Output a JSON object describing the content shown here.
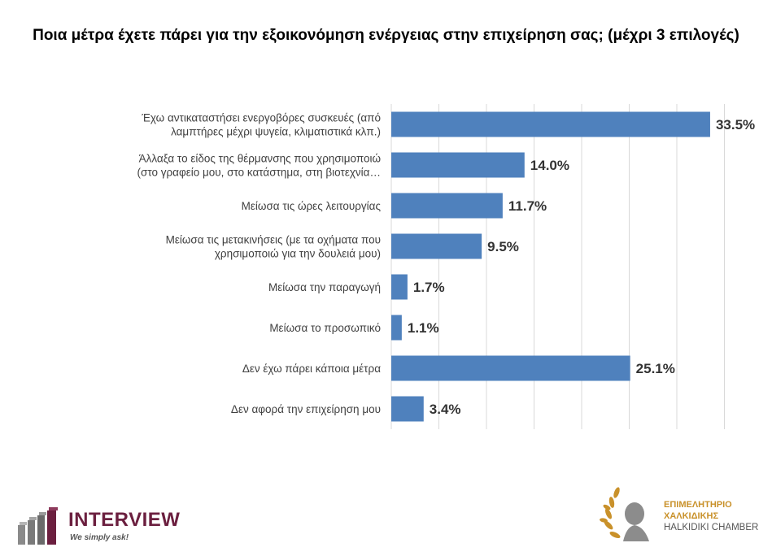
{
  "chart_data": {
    "type": "bar",
    "orientation": "horizontal",
    "title": "Ποια μέτρα έχετε πάρει για την εξοικονόμηση ενέργειας στην επιχείρηση σας; (μέχρι 3 επιλογές)",
    "categories": [
      [
        "Έχω αντικαταστήσει ενεργοβόρες συσκευές (από",
        "λαμπτήρες μέχρι ψυγεία, κλιματιστικά κλπ.)"
      ],
      [
        "Άλλαξα το είδος της θέρμανσης που χρησιμοποιώ",
        "(στο γραφείο μου, στο κατάστημα, στη βιοτεχνία…"
      ],
      [
        "Μείωσα τις ώρες λειτουργίας"
      ],
      [
        "Μείωσα τις μετακινήσεις (με τα οχήματα που",
        "χρησιμοποιώ για την δουλειά μου)"
      ],
      [
        "Μείωσα την παραγωγή"
      ],
      [
        "Μείωσα το προσωπικό"
      ],
      [
        "Δεν έχω πάρει κάποια μέτρα"
      ],
      [
        "Δεν αφορά την επιχείρηση μου"
      ]
    ],
    "values": [
      33.5,
      14.0,
      11.7,
      9.5,
      1.7,
      1.1,
      25.1,
      3.4
    ],
    "value_labels": [
      "33.5%",
      "14.0%",
      "11.7%",
      "9.5%",
      "1.7%",
      "1.1%",
      "25.1%",
      "3.4%"
    ],
    "xlim": [
      0,
      40
    ],
    "grid": true,
    "bar_color": "#4f81bd",
    "grid_color": "#d9d9d9"
  },
  "logos": {
    "interview": {
      "name": "INTERVIEW",
      "tagline": "We simply ask!",
      "color": "#6b1f3f"
    },
    "chamber": {
      "line1": "ΕΠΙΜΕΛΗΤΗΡΙΟ",
      "line2": "ΧΑΛΚΙΔΙΚΗΣ",
      "line3": "HALKIDIKI CHAMBER",
      "color": "#c9912a"
    }
  }
}
